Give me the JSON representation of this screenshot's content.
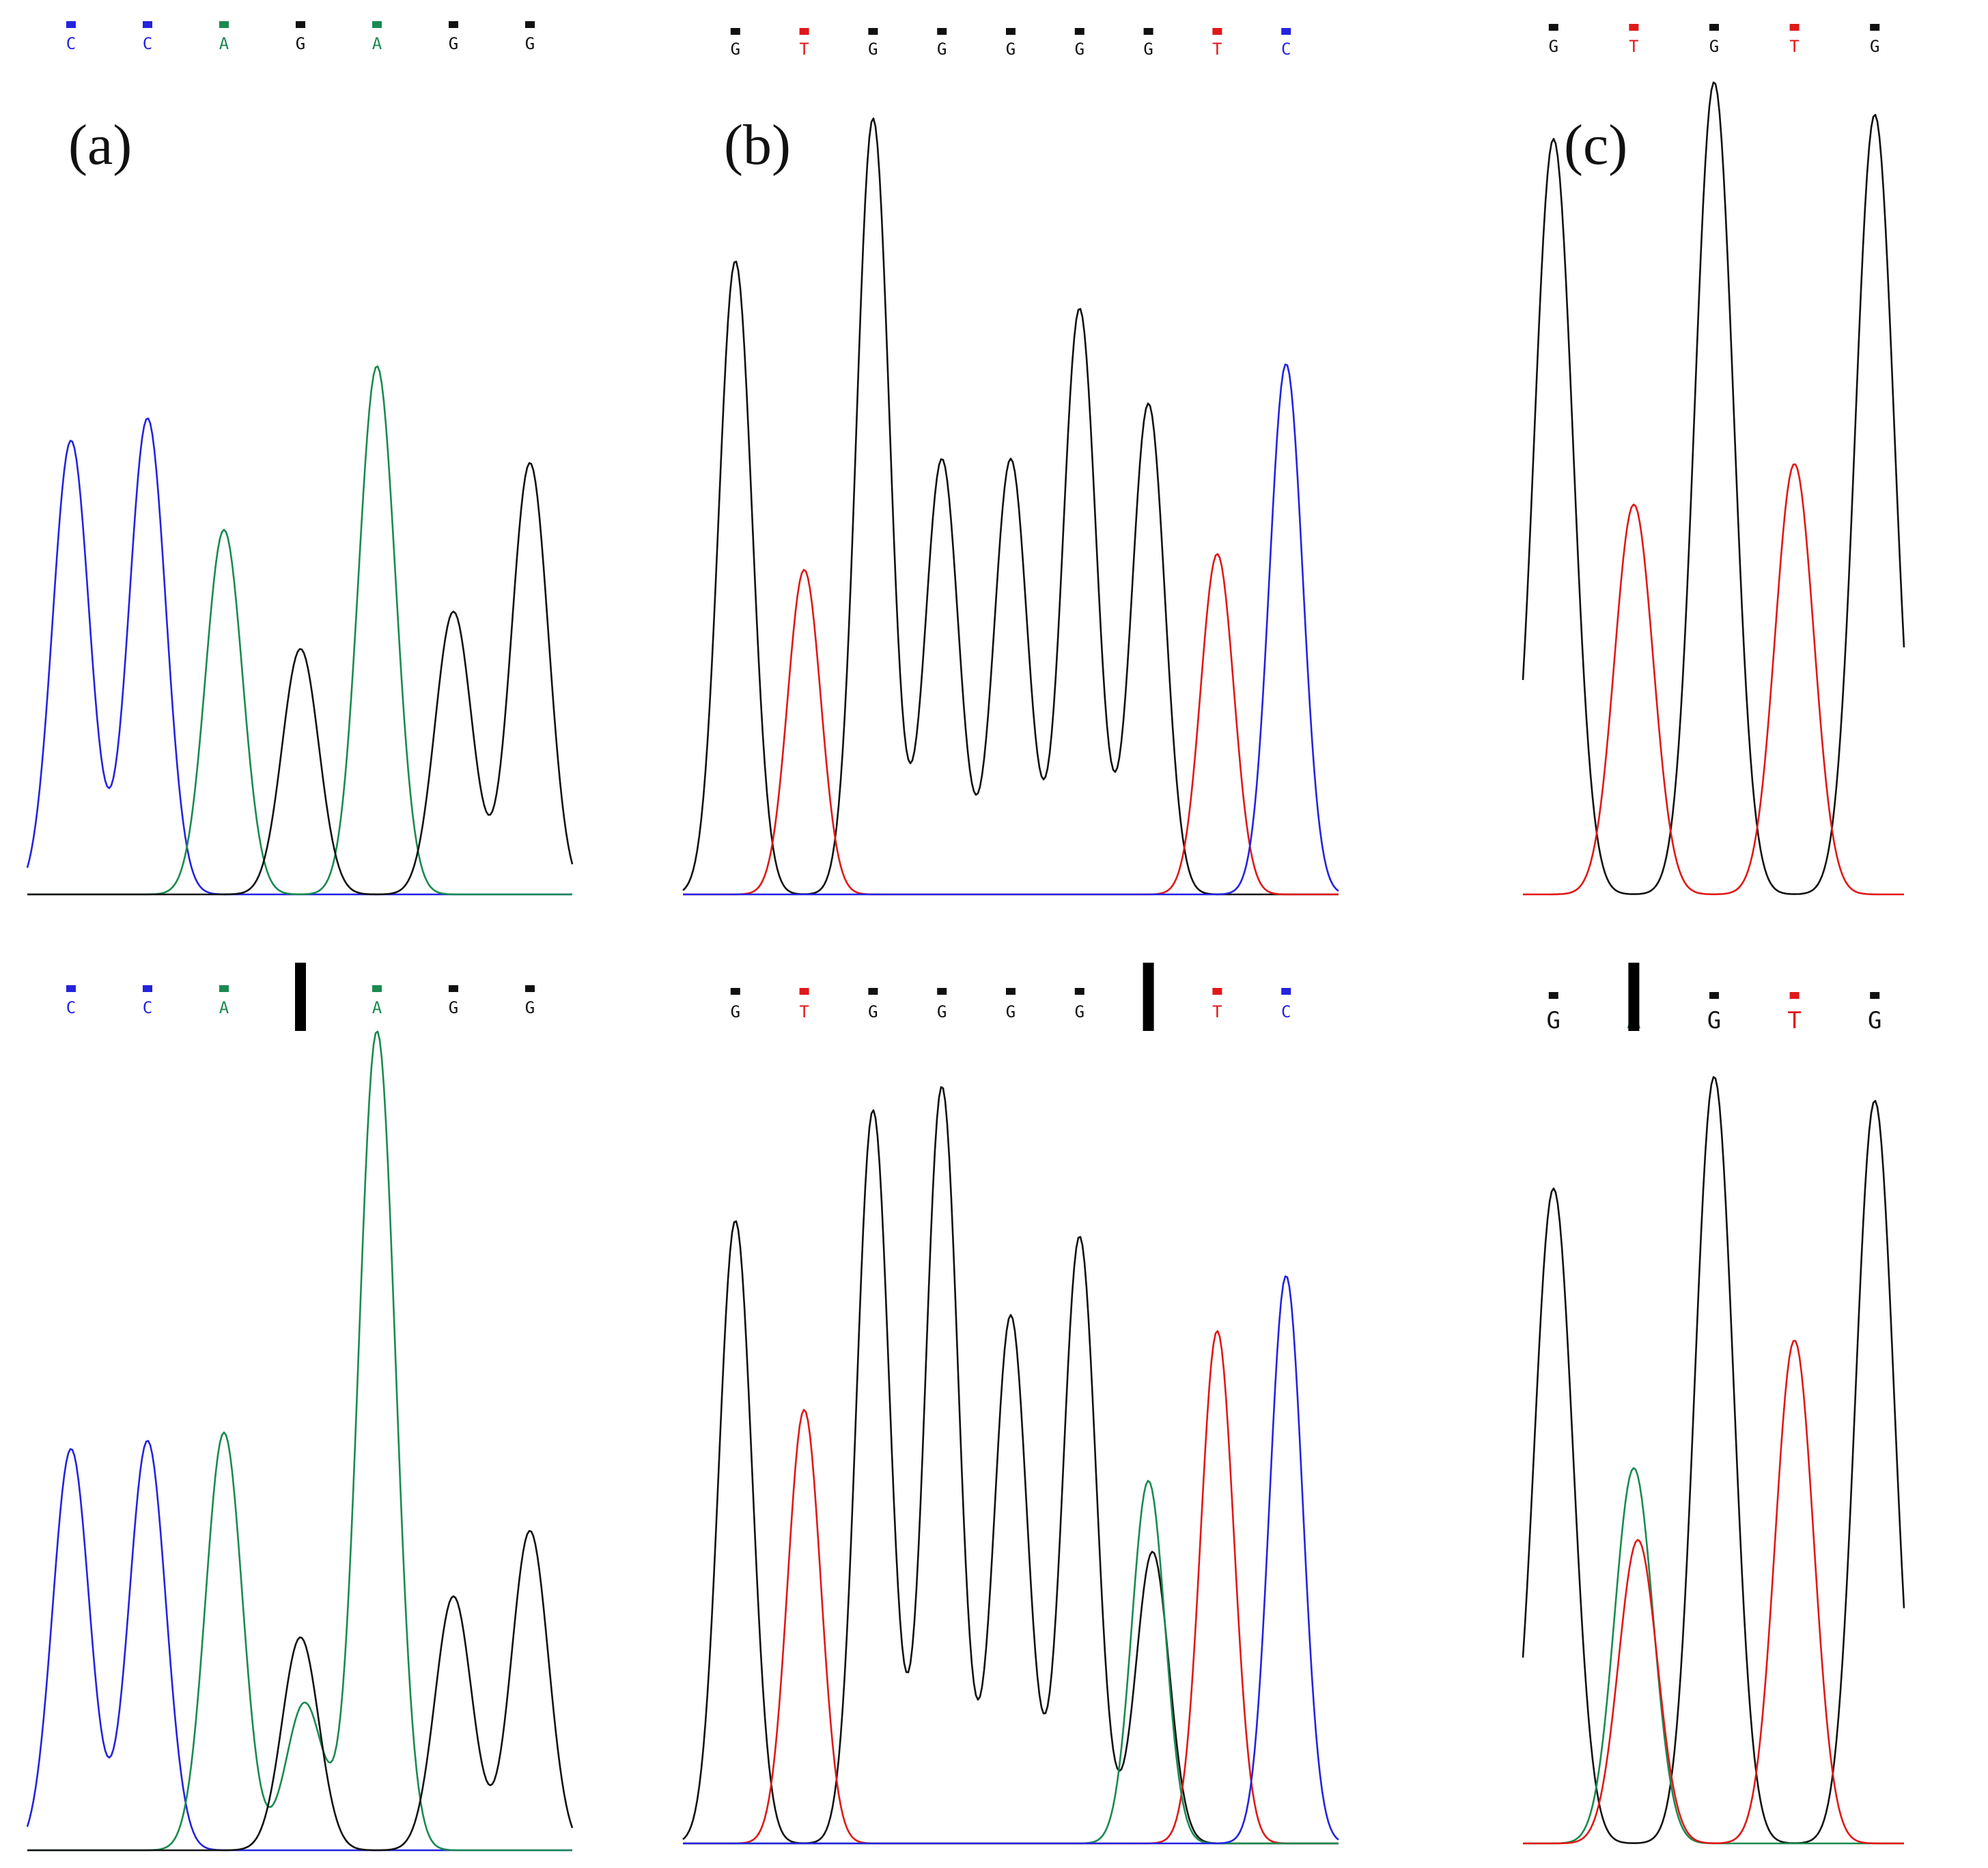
{
  "figure": {
    "colors": {
      "A": "#1a8a50",
      "C": "#2323e0",
      "G": "#111111",
      "T": "#e01818",
      "arrow": "#000000",
      "background": "#ffffff"
    },
    "icon": "down-arrow-icon"
  },
  "chart_data": [
    {
      "type": "line",
      "panel_label": "(a)",
      "row": "top",
      "base_calls": [
        "C",
        "C",
        "A",
        "G",
        "A",
        "G",
        "G"
      ],
      "peaks": [
        {
          "base": "C",
          "trace": "C",
          "height": 0.61
        },
        {
          "base": "C",
          "trace": "C",
          "height": 0.64
        },
        {
          "base": "A",
          "trace": "A",
          "height": 0.49
        },
        {
          "base": "G",
          "trace": "G",
          "height": 0.33
        },
        {
          "base": "A",
          "trace": "A",
          "height": 0.71
        },
        {
          "base": "G",
          "trace": "G",
          "height": 0.38
        },
        {
          "base": "G",
          "trace": "G",
          "height": 0.58
        }
      ],
      "arrow_at": null
    },
    {
      "type": "line",
      "panel_label": "(b)",
      "row": "top",
      "base_calls": [
        "G",
        "T",
        "G",
        "G",
        "G",
        "G",
        "G",
        "T",
        "C"
      ],
      "peaks": [
        {
          "base": "G",
          "trace": "G",
          "height": 0.8
        },
        {
          "base": "T",
          "trace": "T",
          "height": 0.41
        },
        {
          "base": "G",
          "trace": "G",
          "height": 0.98
        },
        {
          "base": "G",
          "trace": "G",
          "height": 0.55
        },
        {
          "base": "G",
          "trace": "G",
          "height": 0.55
        },
        {
          "base": "G",
          "trace": "G",
          "height": 0.74
        },
        {
          "base": "G",
          "trace": "G",
          "height": 0.62
        },
        {
          "base": "T",
          "trace": "T",
          "height": 0.43
        },
        {
          "base": "C",
          "trace": "C",
          "height": 0.67
        }
      ],
      "arrow_at": null
    },
    {
      "type": "line",
      "panel_label": "(c)",
      "row": "top",
      "base_calls": [
        "G",
        "T",
        "G",
        "T",
        "G"
      ],
      "peaks": [
        {
          "base": "G",
          "trace": "G",
          "height": 0.93
        },
        {
          "base": "T",
          "trace": "T",
          "height": 0.48
        },
        {
          "base": "G",
          "trace": "G",
          "height": 1.0
        },
        {
          "base": "T",
          "trace": "T",
          "height": 0.53
        },
        {
          "base": "G",
          "trace": "G",
          "height": 0.96
        }
      ],
      "arrow_at": null
    },
    {
      "type": "line",
      "panel_label": "",
      "row": "bottom",
      "base_calls": [
        "C",
        "C",
        "A",
        "G",
        "A",
        "G",
        "G"
      ],
      "peaks": [
        {
          "base": "C",
          "trace": "C",
          "height": 0.49
        },
        {
          "base": "C",
          "trace": "C",
          "height": 0.5
        },
        {
          "base": "A",
          "trace": "A",
          "height": 0.51
        },
        {
          "base": "G",
          "trace": "G",
          "height": 0.26
        },
        {
          "base": "G",
          "trace": "A",
          "height": 0.18
        },
        {
          "base": "A",
          "trace": "A",
          "height": 1.0
        },
        {
          "base": "G",
          "trace": "G",
          "height": 0.31
        },
        {
          "base": "G",
          "trace": "G",
          "height": 0.39
        }
      ],
      "arrow_at": 3
    },
    {
      "type": "line",
      "panel_label": "",
      "row": "bottom",
      "base_calls": [
        "G",
        "T",
        "G",
        "G",
        "G",
        "G",
        "A",
        "T",
        "C"
      ],
      "peaks": [
        {
          "base": "G",
          "trace": "G",
          "height": 0.79
        },
        {
          "base": "T",
          "trace": "T",
          "height": 0.55
        },
        {
          "base": "G",
          "trace": "G",
          "height": 0.93
        },
        {
          "base": "G",
          "trace": "G",
          "height": 0.96
        },
        {
          "base": "G",
          "trace": "G",
          "height": 0.67
        },
        {
          "base": "G",
          "trace": "G",
          "height": 0.77
        },
        {
          "base": "A",
          "trace": "A",
          "height": 0.46
        },
        {
          "base": "A",
          "trace": "G",
          "height": 0.37
        },
        {
          "base": "T",
          "trace": "T",
          "height": 0.65
        },
        {
          "base": "C",
          "trace": "C",
          "height": 0.72
        }
      ],
      "arrow_at": 6
    },
    {
      "type": "line",
      "panel_label": "",
      "row": "bottom",
      "base_calls": [
        "G",
        "A",
        "G",
        "T",
        "G"
      ],
      "peaks": [
        {
          "base": "G",
          "trace": "G",
          "height": 0.82
        },
        {
          "base": "A",
          "trace": "A",
          "height": 0.47
        },
        {
          "base": "A",
          "trace": "T",
          "height": 0.38
        },
        {
          "base": "G",
          "trace": "G",
          "height": 0.96
        },
        {
          "base": "T",
          "trace": "T",
          "height": 0.63
        },
        {
          "base": "G",
          "trace": "G",
          "height": 0.93
        }
      ],
      "arrow_at": 1
    }
  ]
}
